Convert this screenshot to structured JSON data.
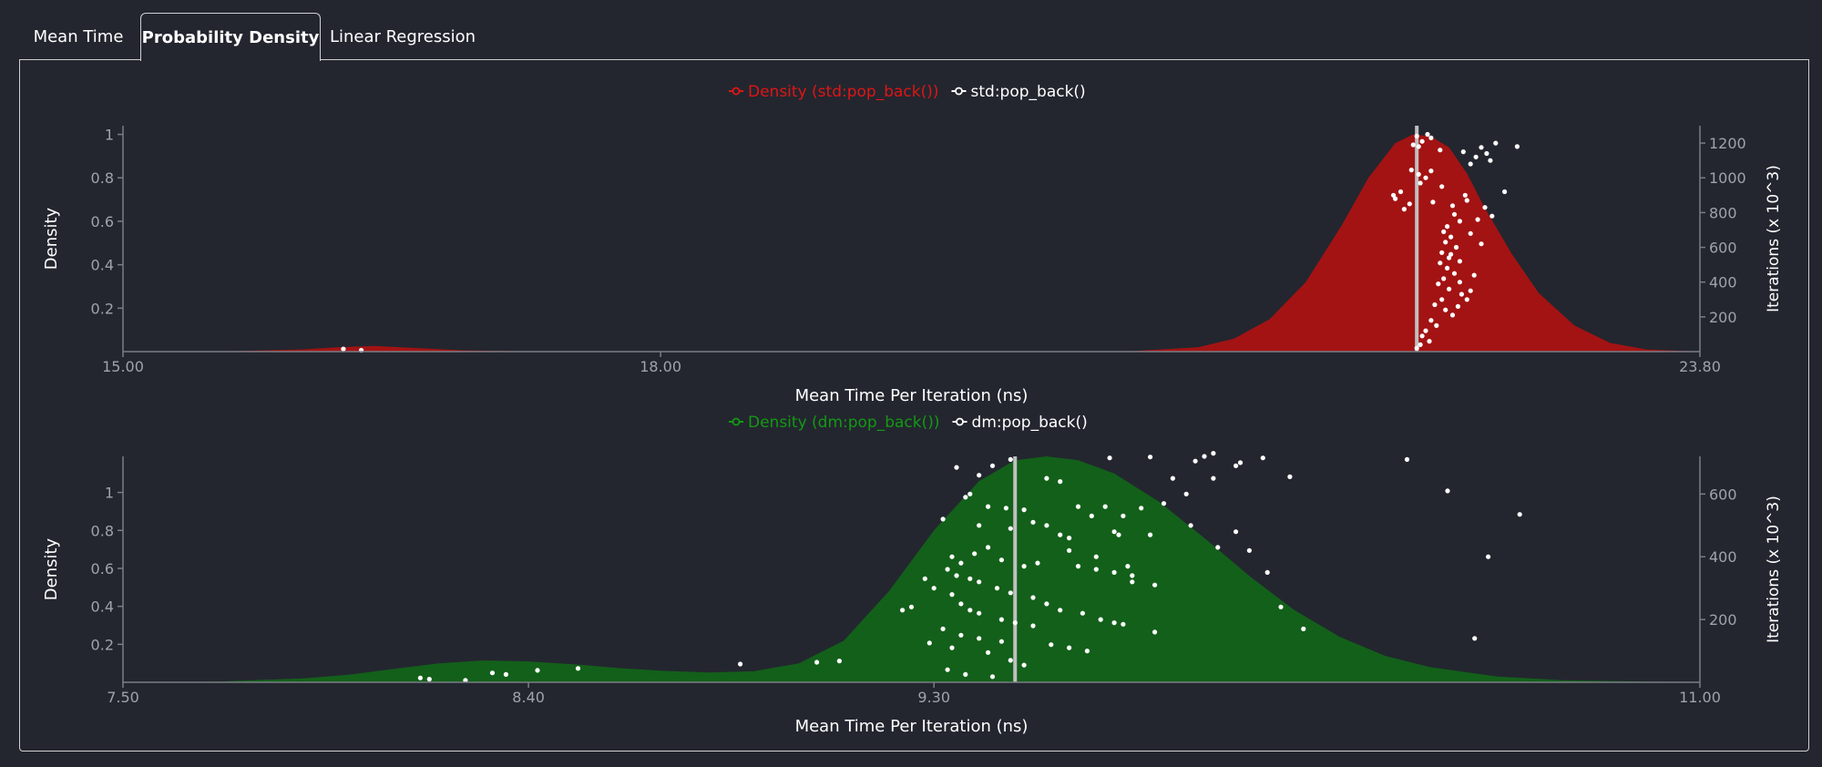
{
  "tabs": [
    {
      "label": "Mean Time",
      "active": false
    },
    {
      "label": "Probability Density",
      "active": true
    },
    {
      "label": "Linear Regression",
      "active": false
    }
  ],
  "colors": {
    "background": "#23262f",
    "axis": "#7a7d86",
    "tick_text": "#a0a3aa",
    "label_text": "#ffffff",
    "red_fill": "#a31313",
    "red_legend": "#e01515",
    "green_fill": "#13601a",
    "green_legend": "#139a13",
    "mean_line": "#c0c0c0",
    "points": "#ffffff"
  },
  "chart_data": [
    {
      "type": "area",
      "title": "",
      "legend": [
        {
          "label": "Density (std:pop_back())",
          "color": "#e01515"
        },
        {
          "label": "std:pop_back()",
          "color": "#ffffff"
        }
      ],
      "legend_position": "top-center",
      "xlabel": "Mean Time Per Iteration (ns)",
      "ylabel": "Density",
      "y2label": "Iterations (x 10^3)",
      "xlim": [
        15.0,
        23.8
      ],
      "ylim": [
        0,
        1.04
      ],
      "y2lim": [
        0,
        1300
      ],
      "x_ticks": [
        "15.00",
        "18.00",
        "23.80"
      ],
      "x_tick_values": [
        15.0,
        18.0,
        23.8
      ],
      "y_ticks": [
        0.2,
        0.4,
        0.6,
        0.8,
        1
      ],
      "y2_ticks": [
        200,
        400,
        600,
        800,
        1000,
        1200
      ],
      "density_curve": [
        [
          15.0,
          0.0
        ],
        [
          15.6,
          0.002
        ],
        [
          16.0,
          0.01
        ],
        [
          16.2,
          0.02
        ],
        [
          16.4,
          0.026
        ],
        [
          16.6,
          0.018
        ],
        [
          16.9,
          0.006
        ],
        [
          17.3,
          0.001
        ],
        [
          17.8,
          0.0
        ],
        [
          19.5,
          0.0
        ],
        [
          20.6,
          0.001
        ],
        [
          21.0,
          0.02
        ],
        [
          21.2,
          0.06
        ],
        [
          21.4,
          0.15
        ],
        [
          21.6,
          0.32
        ],
        [
          21.8,
          0.58
        ],
        [
          21.95,
          0.8
        ],
        [
          22.1,
          0.96
        ],
        [
          22.2,
          1.0
        ],
        [
          22.3,
          0.99
        ],
        [
          22.4,
          0.94
        ],
        [
          22.5,
          0.82
        ],
        [
          22.6,
          0.66
        ],
        [
          22.75,
          0.45
        ],
        [
          22.9,
          0.27
        ],
        [
          23.1,
          0.12
        ],
        [
          23.3,
          0.04
        ],
        [
          23.5,
          0.01
        ],
        [
          23.8,
          0.0
        ]
      ],
      "mean": 22.22,
      "iteration_points": [
        [
          16.23,
          15
        ],
        [
          16.33,
          8
        ],
        [
          22.22,
          1240
        ],
        [
          22.22,
          20
        ],
        [
          22.25,
          1210
        ],
        [
          22.23,
          1180
        ],
        [
          22.28,
          1250
        ],
        [
          22.3,
          1230
        ],
        [
          22.2,
          1190
        ],
        [
          22.35,
          1160
        ],
        [
          22.19,
          1045
        ],
        [
          22.23,
          1020
        ],
        [
          22.27,
          1000
        ],
        [
          22.24,
          970
        ],
        [
          22.3,
          1040
        ],
        [
          22.36,
          950
        ],
        [
          22.13,
          920
        ],
        [
          22.1,
          880
        ],
        [
          22.18,
          850
        ],
        [
          22.15,
          820
        ],
        [
          22.09,
          900
        ],
        [
          22.31,
          860
        ],
        [
          22.42,
          840
        ],
        [
          22.5,
          870
        ],
        [
          22.43,
          790
        ],
        [
          22.46,
          750
        ],
        [
          22.39,
          720
        ],
        [
          22.37,
          690
        ],
        [
          22.41,
          660
        ],
        [
          22.38,
          630
        ],
        [
          22.44,
          600
        ],
        [
          22.36,
          570
        ],
        [
          22.4,
          540
        ],
        [
          22.35,
          510
        ],
        [
          22.39,
          480
        ],
        [
          22.43,
          450
        ],
        [
          22.37,
          420
        ],
        [
          22.34,
          390
        ],
        [
          22.4,
          360
        ],
        [
          22.47,
          330
        ],
        [
          22.36,
          300
        ],
        [
          22.32,
          270
        ],
        [
          22.38,
          240
        ],
        [
          22.42,
          210
        ],
        [
          22.3,
          180
        ],
        [
          22.33,
          150
        ],
        [
          22.27,
          120
        ],
        [
          22.25,
          90
        ],
        [
          22.29,
          60
        ],
        [
          22.24,
          40
        ],
        [
          22.58,
          1175
        ],
        [
          22.55,
          1120
        ],
        [
          22.52,
          1080
        ],
        [
          22.48,
          1150
        ],
        [
          22.63,
          1100
        ],
        [
          22.61,
          1140
        ],
        [
          22.71,
          920
        ],
        [
          22.64,
          780
        ],
        [
          22.56,
          760
        ],
        [
          22.52,
          680
        ],
        [
          22.49,
          900
        ],
        [
          22.58,
          620
        ],
        [
          22.46,
          520
        ],
        [
          22.54,
          440
        ],
        [
          22.46,
          400
        ],
        [
          22.52,
          350
        ],
        [
          22.5,
          300
        ],
        [
          22.45,
          260
        ],
        [
          22.78,
          1180
        ],
        [
          22.6,
          830
        ],
        [
          22.66,
          1200
        ],
        [
          22.41,
          560
        ]
      ]
    },
    {
      "type": "area",
      "title": "",
      "legend": [
        {
          "label": "Density (dm:pop_back())",
          "color": "#139a13"
        },
        {
          "label": "dm:pop_back()",
          "color": "#ffffff"
        }
      ],
      "legend_position": "top-center",
      "xlabel": "Mean Time Per Iteration (ns)",
      "ylabel": "Density",
      "y2label": "Iterations (x 10^3)",
      "xlim": [
        7.5,
        11.0
      ],
      "ylim": [
        0,
        1.19
      ],
      "y2lim": [
        0,
        720
      ],
      "x_ticks": [
        "7.50",
        "8.40",
        "9.30",
        "11.00"
      ],
      "x_tick_values": [
        7.5,
        8.4,
        9.3,
        11.0
      ],
      "y_ticks": [
        0.2,
        0.4,
        0.6,
        0.8,
        1
      ],
      "y2_ticks": [
        200,
        400,
        600
      ],
      "density_curve": [
        [
          7.5,
          0.0
        ],
        [
          7.7,
          0.003
        ],
        [
          7.9,
          0.02
        ],
        [
          8.0,
          0.04
        ],
        [
          8.1,
          0.07
        ],
        [
          8.2,
          0.1
        ],
        [
          8.3,
          0.115
        ],
        [
          8.4,
          0.11
        ],
        [
          8.5,
          0.095
        ],
        [
          8.6,
          0.075
        ],
        [
          8.7,
          0.06
        ],
        [
          8.8,
          0.052
        ],
        [
          8.9,
          0.058
        ],
        [
          9.0,
          0.1
        ],
        [
          9.1,
          0.22
        ],
        [
          9.2,
          0.48
        ],
        [
          9.3,
          0.8
        ],
        [
          9.4,
          1.06
        ],
        [
          9.48,
          1.17
        ],
        [
          9.55,
          1.19
        ],
        [
          9.62,
          1.17
        ],
        [
          9.7,
          1.1
        ],
        [
          9.8,
          0.95
        ],
        [
          9.9,
          0.76
        ],
        [
          10.0,
          0.56
        ],
        [
          10.1,
          0.38
        ],
        [
          10.2,
          0.24
        ],
        [
          10.3,
          0.14
        ],
        [
          10.4,
          0.08
        ],
        [
          10.55,
          0.03
        ],
        [
          10.7,
          0.01
        ],
        [
          11.0,
          0.0
        ]
      ],
      "mean": 9.48,
      "iteration_points": [
        [
          8.16,
          14
        ],
        [
          8.18,
          10
        ],
        [
          8.26,
          6
        ],
        [
          8.32,
          30
        ],
        [
          8.35,
          25
        ],
        [
          8.42,
          38
        ],
        [
          8.51,
          44
        ],
        [
          8.87,
          58
        ],
        [
          9.04,
          64
        ],
        [
          9.09,
          68
        ],
        [
          9.47,
          710
        ],
        [
          9.69,
          715
        ],
        [
          9.78,
          718
        ],
        [
          9.88,
          705
        ],
        [
          9.43,
          690
        ],
        [
          9.35,
          685
        ],
        [
          9.4,
          660
        ],
        [
          9.55,
          650
        ],
        [
          9.58,
          640
        ],
        [
          9.38,
          600
        ],
        [
          9.37,
          590
        ],
        [
          9.42,
          560
        ],
        [
          9.46,
          555
        ],
        [
          9.32,
          520
        ],
        [
          9.5,
          550
        ],
        [
          9.52,
          510
        ],
        [
          9.55,
          500
        ],
        [
          9.62,
          560
        ],
        [
          9.65,
          530
        ],
        [
          9.68,
          560
        ],
        [
          9.72,
          530
        ],
        [
          9.76,
          555
        ],
        [
          9.4,
          500
        ],
        [
          9.47,
          490
        ],
        [
          9.58,
          470
        ],
        [
          9.6,
          460
        ],
        [
          9.7,
          480
        ],
        [
          9.78,
          470
        ],
        [
          9.34,
          400
        ],
        [
          9.36,
          380
        ],
        [
          9.39,
          410
        ],
        [
          9.42,
          430
        ],
        [
          9.45,
          390
        ],
        [
          9.5,
          370
        ],
        [
          9.53,
          380
        ],
        [
          9.62,
          370
        ],
        [
          9.66,
          360
        ],
        [
          9.7,
          350
        ],
        [
          9.74,
          340
        ],
        [
          9.33,
          360
        ],
        [
          9.35,
          340
        ],
        [
          9.38,
          330
        ],
        [
          9.4,
          320
        ],
        [
          9.44,
          300
        ],
        [
          9.47,
          285
        ],
        [
          9.52,
          270
        ],
        [
          9.55,
          250
        ],
        [
          9.58,
          230
        ],
        [
          9.63,
          220
        ],
        [
          9.67,
          200
        ],
        [
          9.7,
          190
        ],
        [
          9.72,
          185
        ],
        [
          9.28,
          330
        ],
        [
          9.3,
          300
        ],
        [
          9.34,
          280
        ],
        [
          9.36,
          250
        ],
        [
          9.38,
          230
        ],
        [
          9.4,
          220
        ],
        [
          9.45,
          200
        ],
        [
          9.48,
          190
        ],
        [
          9.52,
          180
        ],
        [
          9.56,
          120
        ],
        [
          9.6,
          110
        ],
        [
          9.64,
          100
        ],
        [
          9.25,
          240
        ],
        [
          9.23,
          230
        ],
        [
          9.32,
          170
        ],
        [
          9.36,
          150
        ],
        [
          9.4,
          140
        ],
        [
          9.45,
          130
        ],
        [
          9.29,
          125
        ],
        [
          9.34,
          110
        ],
        [
          9.42,
          95
        ],
        [
          9.47,
          70
        ],
        [
          9.5,
          55
        ],
        [
          9.33,
          40
        ],
        [
          9.37,
          25
        ],
        [
          9.43,
          18
        ],
        [
          9.71,
          470
        ],
        [
          9.6,
          420
        ],
        [
          9.66,
          400
        ],
        [
          9.73,
          370
        ],
        [
          9.74,
          320
        ],
        [
          9.79,
          310
        ],
        [
          9.87,
          500
        ],
        [
          9.93,
          430
        ],
        [
          9.97,
          480
        ],
        [
          10.0,
          420
        ],
        [
          10.04,
          350
        ],
        [
          10.07,
          240
        ],
        [
          10.12,
          170
        ],
        [
          10.35,
          710
        ],
        [
          10.44,
          610
        ],
        [
          10.53,
          400
        ],
        [
          10.6,
          535
        ],
        [
          10.5,
          140
        ],
        [
          9.79,
          160
        ],
        [
          9.81,
          570
        ],
        [
          9.86,
          600
        ],
        [
          9.92,
          650
        ],
        [
          9.83,
          650
        ],
        [
          9.92,
          730
        ],
        [
          9.98,
          700
        ],
        [
          10.03,
          715
        ],
        [
          10.09,
          655
        ],
        [
          9.97,
          690
        ],
        [
          9.9,
          720
        ]
      ]
    }
  ]
}
